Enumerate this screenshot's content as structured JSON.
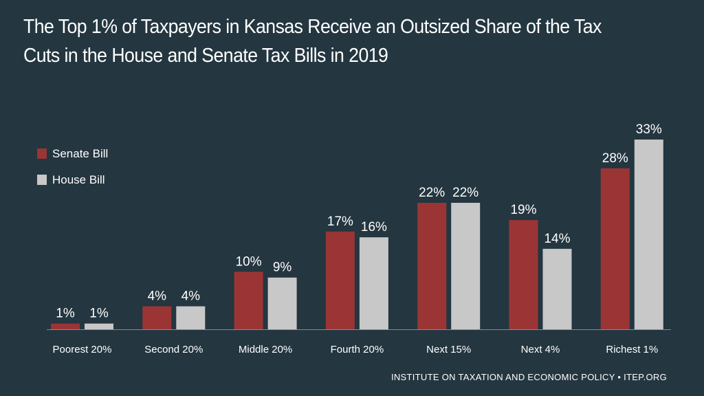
{
  "chart_data": {
    "type": "bar",
    "title": "The Top 1% of Taxpayers in Kansas Receive an Outsized Share of the Tax Cuts in the House and Senate Tax Bills in 2019",
    "categories": [
      "Poorest 20%",
      "Second 20%",
      "Middle 20%",
      "Fourth 20%",
      "Next 15%",
      "Next 4%",
      "Richest 1%"
    ],
    "series": [
      {
        "name": "Senate Bill",
        "color": "#9b3535",
        "values": [
          1,
          4,
          10,
          17,
          22,
          19,
          28
        ],
        "labels": [
          "1%",
          "4%",
          "10%",
          "17%",
          "22%",
          "19%",
          "28%"
        ]
      },
      {
        "name": "House Bill",
        "color": "#c8c8c8",
        "values": [
          1,
          4,
          9,
          16,
          22,
          14,
          33
        ],
        "labels": [
          "1%",
          "4%",
          "9%",
          "16%",
          "22%",
          "14%",
          "33%"
        ]
      }
    ],
    "ylim": [
      0,
      33
    ],
    "grid": false,
    "legend": "top-left"
  },
  "footer": "INSTITUTE ON TAXATION AND ECONOMIC POLICY • ITEP.ORG"
}
